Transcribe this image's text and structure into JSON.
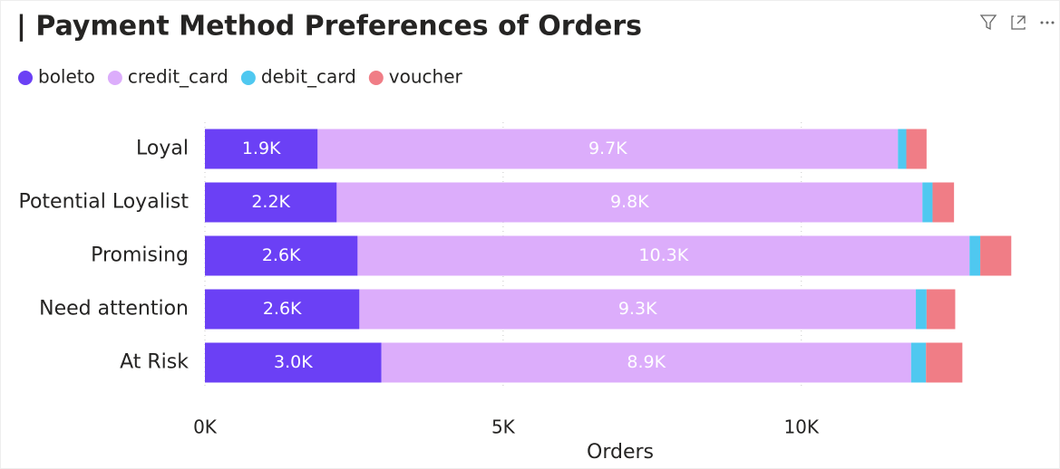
{
  "chart_data": {
    "type": "bar",
    "orientation": "horizontal",
    "stacked": true,
    "title": "| Payment Method Preferences of Orders",
    "categories": [
      "Loyal",
      "Potential Loyalist",
      "Promising",
      "Need attention",
      "At Risk"
    ],
    "series": [
      {
        "name": "boleto",
        "color": "#6b40f5",
        "values": [
          1890,
          2210,
          2560,
          2590,
          2960
        ],
        "value_labels": [
          "1.9K",
          "2.2K",
          "2.6K",
          "2.6K",
          "3.0K"
        ]
      },
      {
        "name": "credit_card",
        "color": "#dcadfb",
        "values": [
          9730,
          9820,
          10260,
          9330,
          8880
        ],
        "value_labels": [
          "9.7K",
          "9.8K",
          "10.3K",
          "9.3K",
          "8.9K"
        ]
      },
      {
        "name": "debit_card",
        "color": "#4fc8f0",
        "values": [
          140,
          170,
          180,
          180,
          250
        ]
      },
      {
        "name": "voucher",
        "color": "#f07d86",
        "values": [
          340,
          360,
          520,
          480,
          610
        ]
      }
    ],
    "x_label": "Orders",
    "xlim": [
      0,
      14200
    ],
    "xticks": [
      {
        "value": 0,
        "label": "0K"
      },
      {
        "value": 5000,
        "label": "5K"
      },
      {
        "value": 10000,
        "label": "10K"
      }
    ],
    "grid": true,
    "legend": "top-left"
  }
}
